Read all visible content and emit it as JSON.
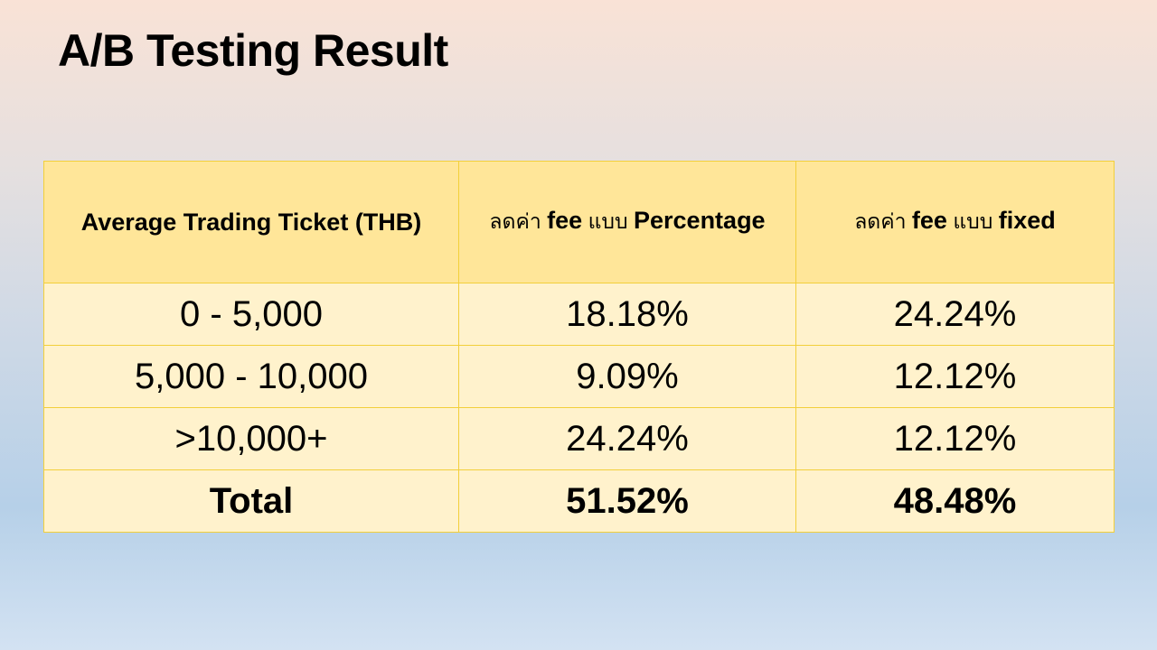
{
  "slide": {
    "title": "A/B Testing Result"
  },
  "table": {
    "headers": [
      {
        "parts": [
          {
            "text": "Average Trading Ticket (THB)",
            "bold": true
          }
        ]
      },
      {
        "parts": [
          {
            "text": "ลดค่า ",
            "bold": false
          },
          {
            "text": "fee",
            "bold": true
          },
          {
            "text": " แบบ ",
            "bold": false
          },
          {
            "text": "Percentage",
            "bold": true
          }
        ]
      },
      {
        "parts": [
          {
            "text": "ลดค่า ",
            "bold": false
          },
          {
            "text": "fee",
            "bold": true
          },
          {
            "text": " แบบ ",
            "bold": false
          },
          {
            "text": "fixed",
            "bold": true
          }
        ]
      }
    ],
    "rows": [
      [
        "0 - 5,000",
        "18.18%",
        "24.24%"
      ],
      [
        "5,000 - 10,000",
        "9.09%",
        "12.12%"
      ],
      [
        ">10,000+",
        "24.24%",
        "12.12%"
      ]
    ],
    "total": [
      "Total",
      "51.52%",
      "48.48%"
    ]
  },
  "colors": {
    "header_fill": "#ffe699",
    "body_fill": "#fff2cc",
    "border": "#f2cf3a",
    "text": "#000000"
  }
}
